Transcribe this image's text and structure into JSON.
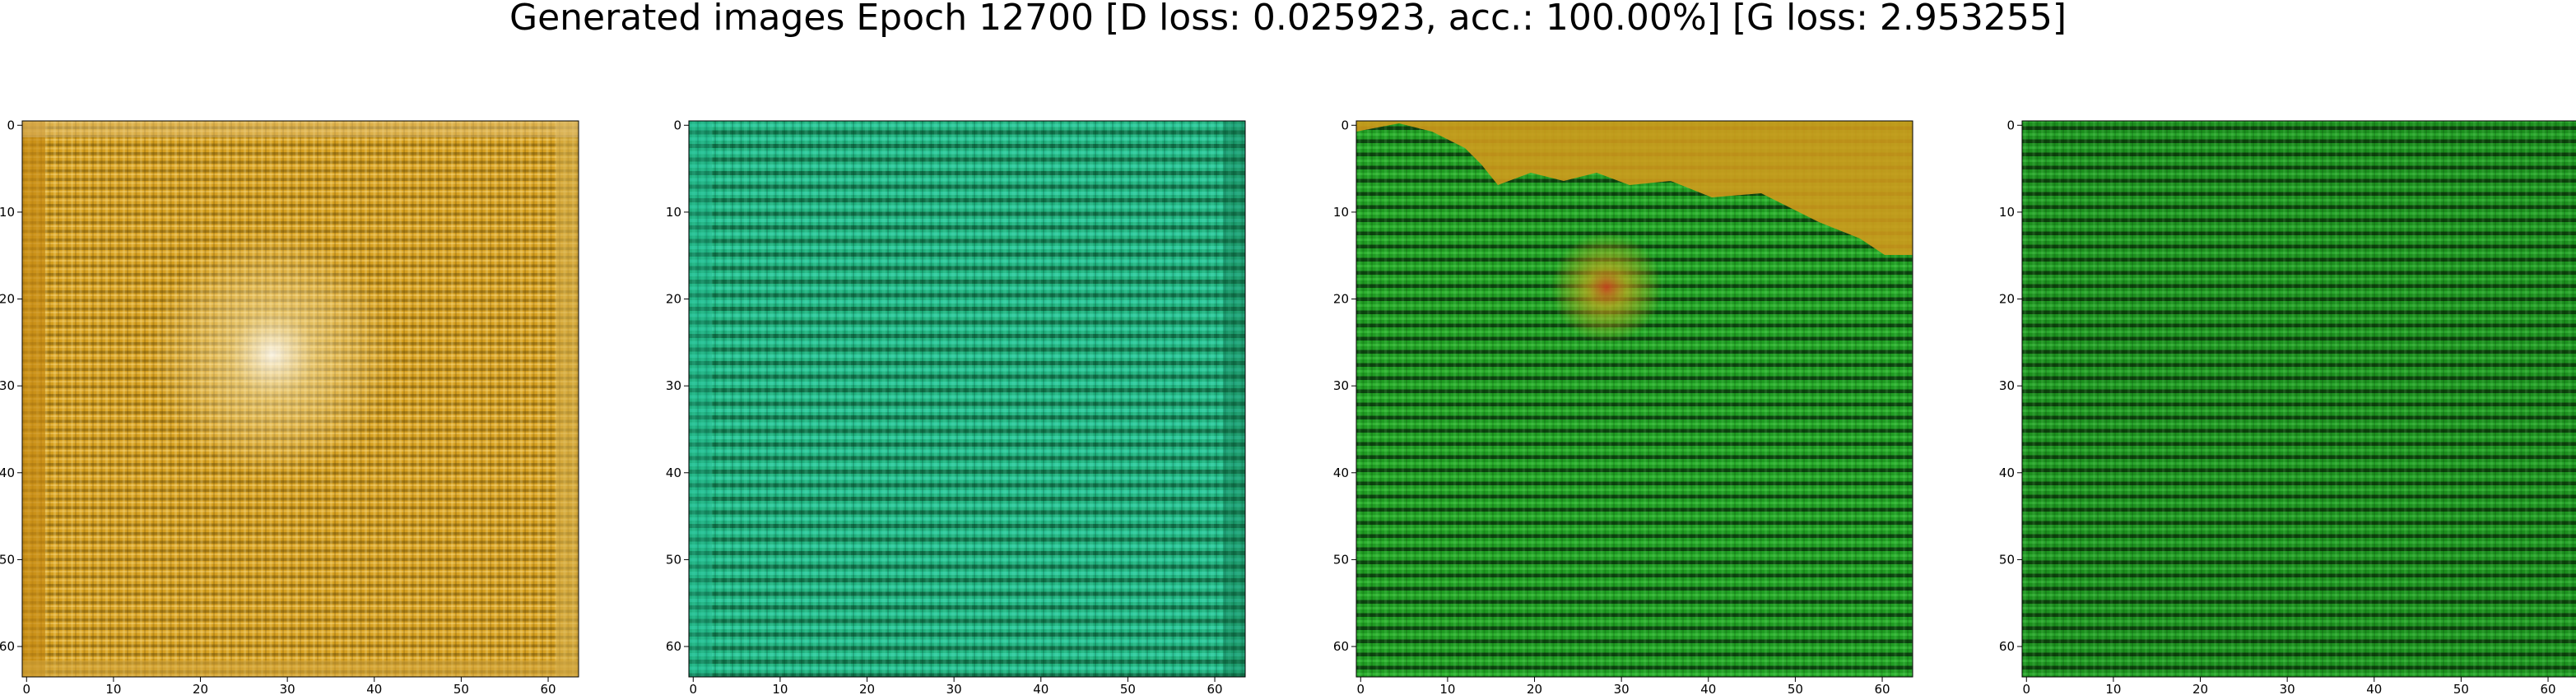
{
  "figure": {
    "suptitle": "Generated images Epoch 12700 [D loss: 0.025923, acc.: 100.00%] [G loss: 2.953255]"
  },
  "panels": [
    {
      "name": "panel-1",
      "dominant_colors": {
        "base": "#d9a21c",
        "light": "#f2d27a",
        "dark": "#3a3212",
        "stripe": "#b07a10"
      },
      "x_ticks": [
        "0",
        "10",
        "20",
        "30",
        "40",
        "50",
        "60"
      ],
      "y_ticks": [
        "0",
        "10",
        "20",
        "30",
        "40",
        "50",
        "60"
      ]
    },
    {
      "name": "panel-2",
      "dominant_colors": {
        "base": "#1fae7a",
        "light": "#33d6b0",
        "dark": "#0b3a25",
        "stripe": "#148a5a"
      },
      "x_ticks": [
        "0",
        "10",
        "20",
        "30",
        "40",
        "50",
        "60"
      ],
      "y_ticks": [
        "0",
        "10",
        "20",
        "30",
        "40",
        "50",
        "60"
      ]
    },
    {
      "name": "panel-3",
      "dominant_colors": {
        "base": "#1f9a1f",
        "light": "#3ccf3c",
        "dark": "#0a2a0a",
        "stripe": "#d79a1a"
      },
      "x_ticks": [
        "0",
        "10",
        "20",
        "30",
        "40",
        "50",
        "60"
      ],
      "y_ticks": [
        "0",
        "10",
        "20",
        "30",
        "40",
        "50",
        "60"
      ]
    },
    {
      "name": "panel-4",
      "dominant_colors": {
        "base": "#1f8f1f",
        "light": "#36c436",
        "dark": "#0a2a0a",
        "stripe": "#167016"
      },
      "x_ticks": [
        "0",
        "10",
        "20",
        "30",
        "40",
        "50",
        "60"
      ],
      "y_ticks": [
        "0",
        "10",
        "20",
        "30",
        "40",
        "50",
        "60"
      ]
    }
  ]
}
